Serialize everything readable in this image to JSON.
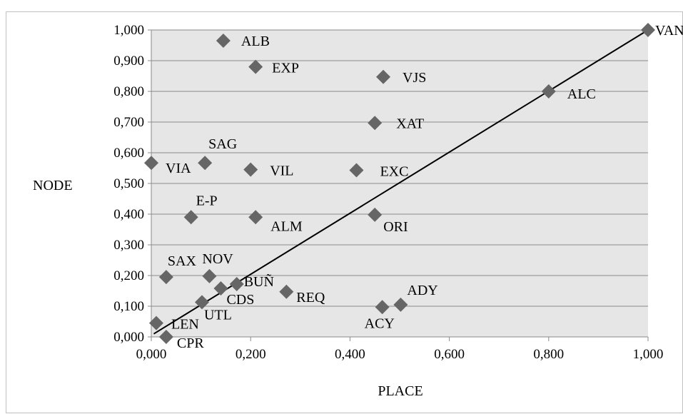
{
  "chart_data": {
    "type": "scatter",
    "title": "",
    "xlabel": "PLACE",
    "ylabel": "NODE",
    "xlim": [
      0,
      1
    ],
    "ylim": [
      0,
      1
    ],
    "grid": "horizontal",
    "legend": "none",
    "x_ticks": [
      "0,000",
      "0,200",
      "0,400",
      "0,600",
      "0,800",
      "1,000"
    ],
    "y_ticks": [
      "0,000",
      "0,100",
      "0,200",
      "0,300",
      "0,400",
      "0,500",
      "0,600",
      "0,700",
      "0,800",
      "0,900",
      "1,000"
    ],
    "marker_color": "#666666",
    "plot_bg": "#e6e6e6",
    "trendline": {
      "from": [
        0.005,
        0.01
      ],
      "to": [
        1.0,
        1.0
      ],
      "color": "#000000"
    },
    "points": [
      {
        "label": "VAN",
        "x": 1.0,
        "y": 1.0
      },
      {
        "label": "ALB",
        "x": 0.145,
        "y": 0.965
      },
      {
        "label": "EXP",
        "x": 0.21,
        "y": 0.88
      },
      {
        "label": "VJS",
        "x": 0.467,
        "y": 0.847
      },
      {
        "label": "ALC",
        "x": 0.8,
        "y": 0.8
      },
      {
        "label": "XAT",
        "x": 0.45,
        "y": 0.697
      },
      {
        "label": "VIA",
        "x": 0.0,
        "y": 0.567
      },
      {
        "label": "SAG",
        "x": 0.108,
        "y": 0.567
      },
      {
        "label": "VIL",
        "x": 0.2,
        "y": 0.545
      },
      {
        "label": "EXC",
        "x": 0.413,
        "y": 0.543
      },
      {
        "label": "E-P",
        "x": 0.08,
        "y": 0.39
      },
      {
        "label": "ALM",
        "x": 0.21,
        "y": 0.39
      },
      {
        "label": "ORI",
        "x": 0.45,
        "y": 0.398
      },
      {
        "label": "SAX",
        "x": 0.03,
        "y": 0.195
      },
      {
        "label": "NOV",
        "x": 0.117,
        "y": 0.198
      },
      {
        "label": "BUÑ",
        "x": 0.172,
        "y": 0.172
      },
      {
        "label": "CDS",
        "x": 0.14,
        "y": 0.158
      },
      {
        "label": "REQ",
        "x": 0.272,
        "y": 0.147
      },
      {
        "label": "UTL",
        "x": 0.102,
        "y": 0.113
      },
      {
        "label": "ADY",
        "x": 0.502,
        "y": 0.105
      },
      {
        "label": "ACY",
        "x": 0.465,
        "y": 0.097
      },
      {
        "label": "LEN",
        "x": 0.01,
        "y": 0.045
      },
      {
        "label": "CPR",
        "x": 0.03,
        "y": 0.0
      }
    ]
  }
}
